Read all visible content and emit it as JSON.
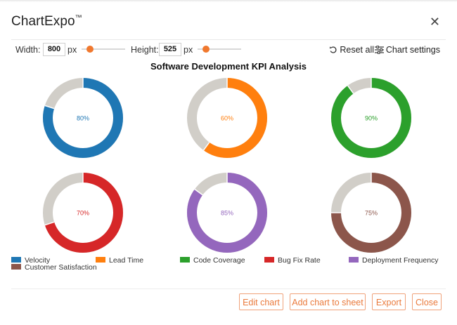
{
  "app": {
    "brand": "ChartExpo",
    "brand_mark": "™"
  },
  "controls": {
    "width_label": "Width:",
    "width_value": "800",
    "width_unit": "px",
    "width_slider_fraction": 0.13,
    "height_label": "Height:",
    "height_value": "525",
    "height_unit": "px",
    "height_slider_fraction": 0.13,
    "reset_label": "Reset all",
    "settings_label": "Chart settings",
    "accent": "#f0782e"
  },
  "chart_data": {
    "type": "pie",
    "subtype": "donut",
    "title": "Software Development KPI Analysis",
    "remainder_color": "#d1cec8",
    "series": [
      {
        "name": "Velocity",
        "value": 80,
        "label": "80%",
        "color": "#1f77b4"
      },
      {
        "name": "Lead Time",
        "value": 60,
        "label": "60%",
        "color": "#ff7f0e"
      },
      {
        "name": "Code Coverage",
        "value": 90,
        "label": "90%",
        "color": "#2ca02c"
      },
      {
        "name": "Bug Fix Rate",
        "value": 70,
        "label": "70%",
        "color": "#d62728"
      },
      {
        "name": "Deployment Frequency",
        "value": 85,
        "label": "85%",
        "color": "#9467bd"
      },
      {
        "name": "Customer Satisfaction",
        "value": 75,
        "label": "75%",
        "color": "#8c564b"
      }
    ],
    "legend_position": "bottom"
  },
  "footer": {
    "edit_label": "Edit chart",
    "add_label": "Add chart to sheet",
    "export_label": "Export",
    "close_label": "Close"
  }
}
